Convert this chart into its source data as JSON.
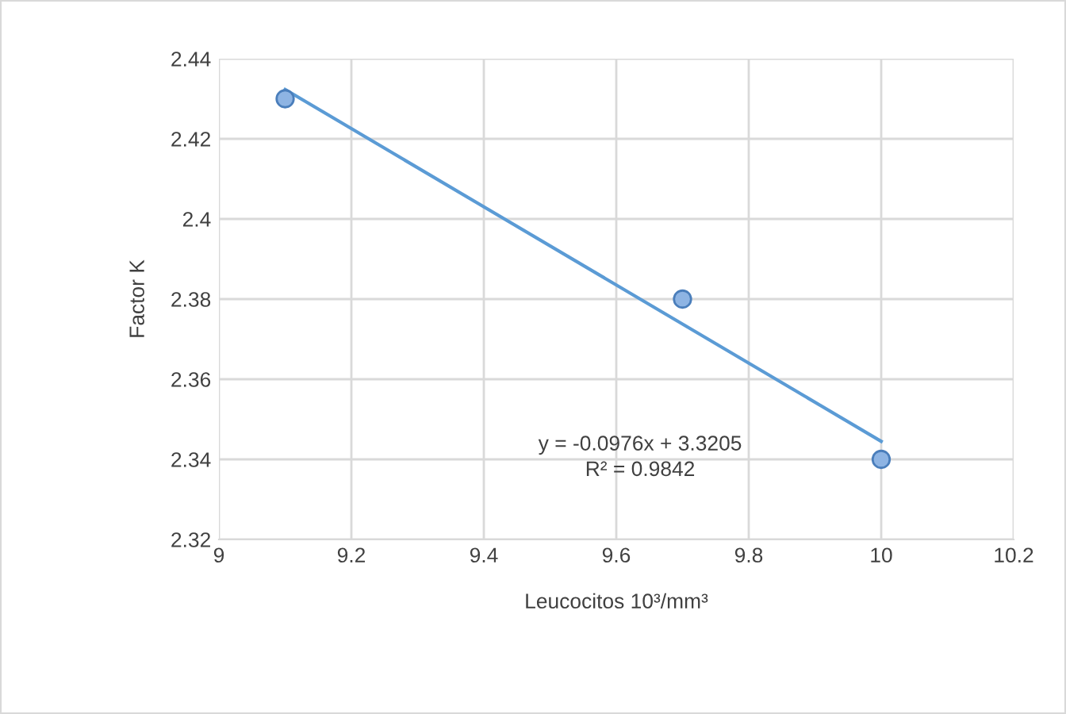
{
  "chart_data": {
    "type": "scatter",
    "xlabel": "Leucocitos 10³/mm³",
    "ylabel": "Factor K",
    "series": [
      {
        "color": "#8eb4e3",
        "marker": "circle",
        "x": [
          9.1,
          9.7,
          10
        ],
        "values": [
          2.43,
          2.38,
          2.34
        ]
      },
      {
        "type": "line",
        "color": "#5b9bd5",
        "x": [
          9.1,
          10
        ],
        "values": [
          2.4323,
          2.3445
        ]
      }
    ],
    "xlim": [
      9,
      10.2
    ],
    "xticks": [
      9,
      9.2,
      9.4,
      9.6,
      9.8,
      10,
      10.2
    ],
    "ylim": [
      2.32,
      2.44
    ],
    "yticks": [
      2.32,
      2.34,
      2.36,
      2.38,
      2.4,
      2.42,
      2.44
    ],
    "grid": true,
    "annotations": [
      "y = -0.0976x + 3.3205\nR² = 0.9842"
    ]
  }
}
